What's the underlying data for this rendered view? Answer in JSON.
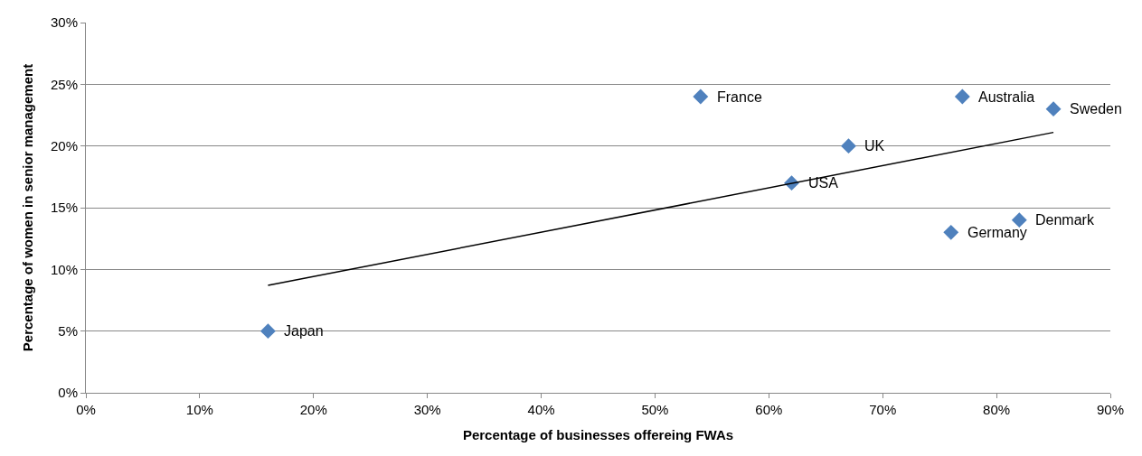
{
  "chart_data": {
    "type": "scatter",
    "xlabel": "Percentage of businesses offereing FWAs",
    "ylabel": "Percentage of women in senior management",
    "series": [
      {
        "color": "#4f81bd",
        "marker": "diamond",
        "x": [
          16,
          54,
          62,
          67,
          76,
          77,
          82,
          85
        ],
        "values": [
          5,
          24,
          17,
          20,
          13,
          24,
          14,
          23
        ]
      },
      {
        "type": "line",
        "color": "#000000",
        "marker": "none",
        "x": [
          16,
          85
        ],
        "values": [
          8.7,
          21.1
        ]
      }
    ],
    "annotations": [
      {
        "text": "Japan",
        "x": 16,
        "y": 5
      },
      {
        "text": "France",
        "x": 54,
        "y": 24
      },
      {
        "text": "USA",
        "x": 62,
        "y": 17
      },
      {
        "text": "UK",
        "x": 67,
        "y": 20
      },
      {
        "text": "Germany",
        "x": 76,
        "y": 13
      },
      {
        "text": "Australia",
        "x": 77,
        "y": 24
      },
      {
        "text": "Denmark",
        "x": 82,
        "y": 14
      },
      {
        "text": "Sweden",
        "x": 85,
        "y": 23
      }
    ],
    "xlim": [
      0,
      90
    ],
    "xticks": [
      {
        "value": 0,
        "label": "0%"
      },
      {
        "value": 10,
        "label": "10%"
      },
      {
        "value": 20,
        "label": "20%"
      },
      {
        "value": 30,
        "label": "30%"
      },
      {
        "value": 40,
        "label": "40%"
      },
      {
        "value": 50,
        "label": "50%"
      },
      {
        "value": 60,
        "label": "60%"
      },
      {
        "value": 70,
        "label": "70%"
      },
      {
        "value": 80,
        "label": "80%"
      },
      {
        "value": 90,
        "label": "90%"
      }
    ],
    "ylim": [
      0,
      30
    ],
    "yticks": [
      {
        "value": 0,
        "label": "0%"
      },
      {
        "value": 5,
        "label": "5%"
      },
      {
        "value": 10,
        "label": "10%"
      },
      {
        "value": 15,
        "label": "15%"
      },
      {
        "value": 20,
        "label": "20%"
      },
      {
        "value": 25,
        "label": "25%"
      },
      {
        "value": 30,
        "label": "30%"
      }
    ],
    "grid": "y"
  }
}
